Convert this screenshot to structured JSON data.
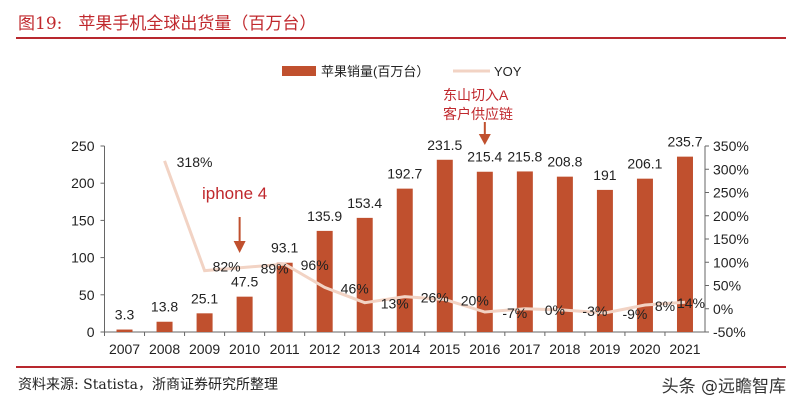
{
  "header": {
    "figure_no": "图19:",
    "title": "苹果手机全球出货量（百万台）"
  },
  "footer": {
    "source": "资料来源: Statista，浙商证券研究所整理",
    "watermark": "头条 @远瞻智库"
  },
  "colors": {
    "bar": "#C0502E",
    "line": "#F2D3C4",
    "accent": "#C0282D",
    "axis": "#666666"
  },
  "chart_data": {
    "type": "bar+line",
    "categories": [
      "2007",
      "2008",
      "2009",
      "2010",
      "2011",
      "2012",
      "2013",
      "2014",
      "2015",
      "2016",
      "2017",
      "2018",
      "2019",
      "2020",
      "2021"
    ],
    "series": [
      {
        "name": "苹果销量(百万台)",
        "type": "bar",
        "axis": "left",
        "values": [
          3.3,
          13.8,
          25.1,
          47.5,
          93.1,
          135.9,
          153.4,
          192.7,
          231.5,
          215.4,
          215.8,
          208.8,
          191,
          206.1,
          235.7
        ],
        "labels": [
          "3.3",
          "13.8",
          "25.1",
          "47.5",
          "93.1",
          "135.9",
          "153.4",
          "192.7",
          "231.5",
          "215.4",
          "215.8",
          "208.8",
          "191",
          "206.1",
          "235.7"
        ]
      },
      {
        "name": "YOY",
        "type": "line",
        "axis": "right",
        "values": [
          null,
          318,
          82,
          89,
          96,
          46,
          13,
          26,
          20,
          -7,
          0,
          -3,
          -9,
          8,
          14
        ],
        "labels": [
          "",
          "318%",
          "82%",
          "89%",
          "96%",
          "46%",
          "13%",
          "26%",
          "20%",
          "-7%",
          "0%",
          "-3%",
          "-9%",
          "8%",
          "14%"
        ]
      }
    ],
    "left_axis": {
      "range": [
        0,
        250
      ],
      "ticks": [
        "0",
        "50",
        "100",
        "150",
        "200",
        "250"
      ]
    },
    "right_axis": {
      "range": [
        -50,
        350
      ],
      "ticks": [
        "-50%",
        "0%",
        "50%",
        "100%",
        "150%",
        "200%",
        "250%",
        "300%",
        "350%"
      ]
    },
    "legend": {
      "position": "top",
      "items": [
        "苹果销量(百万台）",
        "YOY"
      ]
    },
    "annotations": [
      {
        "text": "iphone 4",
        "category": "2010"
      },
      {
        "text": "东山切入A客户供应链",
        "category": "2016"
      }
    ],
    "grid": false
  }
}
